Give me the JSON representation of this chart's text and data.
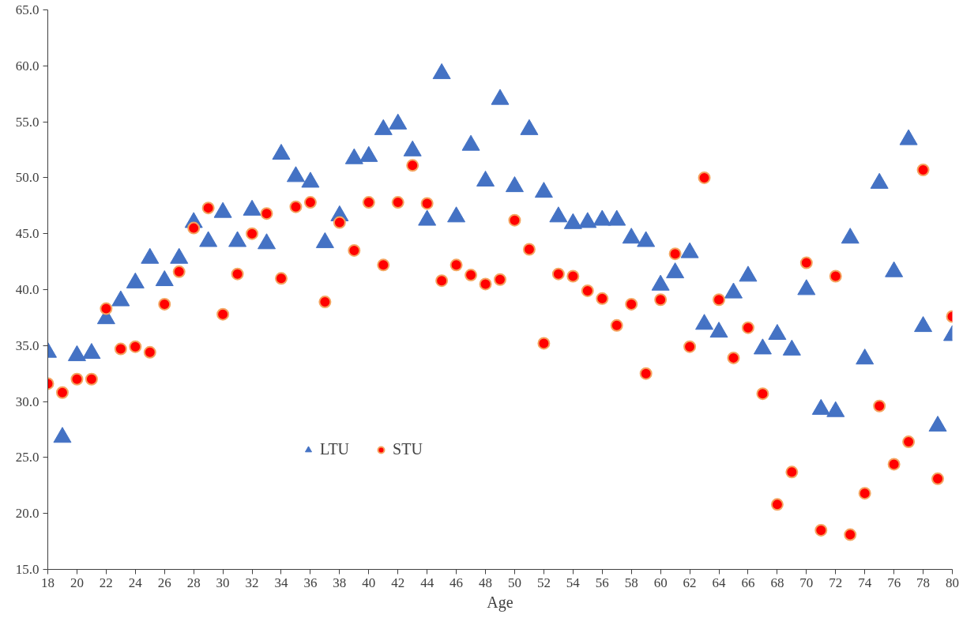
{
  "chart_data": {
    "type": "scatter",
    "xlabel": "Age",
    "x": [
      18,
      19,
      20,
      21,
      22,
      23,
      24,
      25,
      26,
      27,
      28,
      29,
      30,
      31,
      32,
      33,
      34,
      35,
      36,
      37,
      38,
      39,
      40,
      41,
      42,
      43,
      44,
      45,
      46,
      47,
      48,
      49,
      50,
      51,
      52,
      53,
      54,
      55,
      56,
      57,
      58,
      59,
      60,
      61,
      62,
      63,
      64,
      65,
      66,
      67,
      68,
      69,
      70,
      71,
      72,
      73,
      74,
      75,
      76,
      77,
      78,
      79,
      80
    ],
    "series": [
      {
        "name": "LTU",
        "color": "#4472c4",
        "marker": "triangle",
        "values": [
          34.4,
          26.8,
          34.1,
          34.3,
          37.4,
          39.0,
          40.6,
          42.8,
          40.8,
          42.8,
          46.0,
          44.3,
          46.9,
          44.3,
          47.1,
          44.1,
          52.1,
          50.1,
          49.6,
          44.2,
          46.6,
          51.7,
          51.9,
          54.3,
          54.8,
          52.4,
          46.2,
          59.3,
          46.5,
          52.9,
          49.7,
          57.0,
          49.2,
          54.3,
          48.7,
          46.5,
          45.9,
          46.0,
          46.2,
          46.2,
          44.6,
          44.3,
          40.4,
          41.5,
          43.3,
          36.9,
          36.2,
          39.7,
          41.2,
          34.7,
          36.0,
          34.6,
          40.0,
          29.3,
          29.1,
          44.6,
          33.8,
          49.5,
          41.6,
          53.4,
          36.7,
          27.8,
          35.9
        ]
      },
      {
        "name": "STU",
        "color": "#ff0000",
        "marker": "circle",
        "values": [
          31.6,
          30.8,
          32.0,
          32.0,
          38.3,
          34.7,
          34.9,
          34.4,
          38.7,
          41.6,
          45.5,
          47.3,
          37.8,
          41.4,
          45.0,
          46.8,
          41.0,
          47.4,
          47.8,
          38.9,
          46.0,
          43.5,
          47.8,
          42.2,
          47.8,
          51.1,
          47.7,
          40.8,
          42.2,
          41.3,
          40.5,
          40.9,
          46.2,
          43.6,
          35.2,
          41.4,
          41.2,
          39.9,
          39.2,
          36.8,
          38.7,
          32.5,
          39.1,
          43.2,
          34.9,
          50.0,
          39.1,
          33.9,
          36.6,
          30.7,
          20.8,
          23.7,
          42.4,
          18.5,
          41.2,
          18.1,
          21.8,
          29.6,
          24.4,
          26.4,
          50.7,
          23.1,
          37.6
        ]
      }
    ],
    "xlim": [
      18,
      80
    ],
    "xticks": [
      18,
      20,
      22,
      24,
      26,
      28,
      30,
      32,
      34,
      36,
      38,
      40,
      42,
      44,
      46,
      48,
      50,
      52,
      54,
      56,
      58,
      60,
      62,
      64,
      66,
      68,
      70,
      72,
      74,
      76,
      78,
      80
    ],
    "ylim": [
      15,
      65
    ],
    "yticks": [
      {
        "value": 15,
        "label": "15.0"
      },
      {
        "value": 20,
        "label": "20.0"
      },
      {
        "value": 25,
        "label": "25.0"
      },
      {
        "value": 30,
        "label": "30.0"
      },
      {
        "value": 35,
        "label": "35.0"
      },
      {
        "value": 40,
        "label": "40.0"
      },
      {
        "value": 45,
        "label": "45.0"
      },
      {
        "value": 50,
        "label": "50.0"
      },
      {
        "value": 55,
        "label": "55.0"
      },
      {
        "value": 60,
        "label": "60.0"
      },
      {
        "value": 65,
        "label": "65.0"
      }
    ],
    "legend": "left"
  }
}
